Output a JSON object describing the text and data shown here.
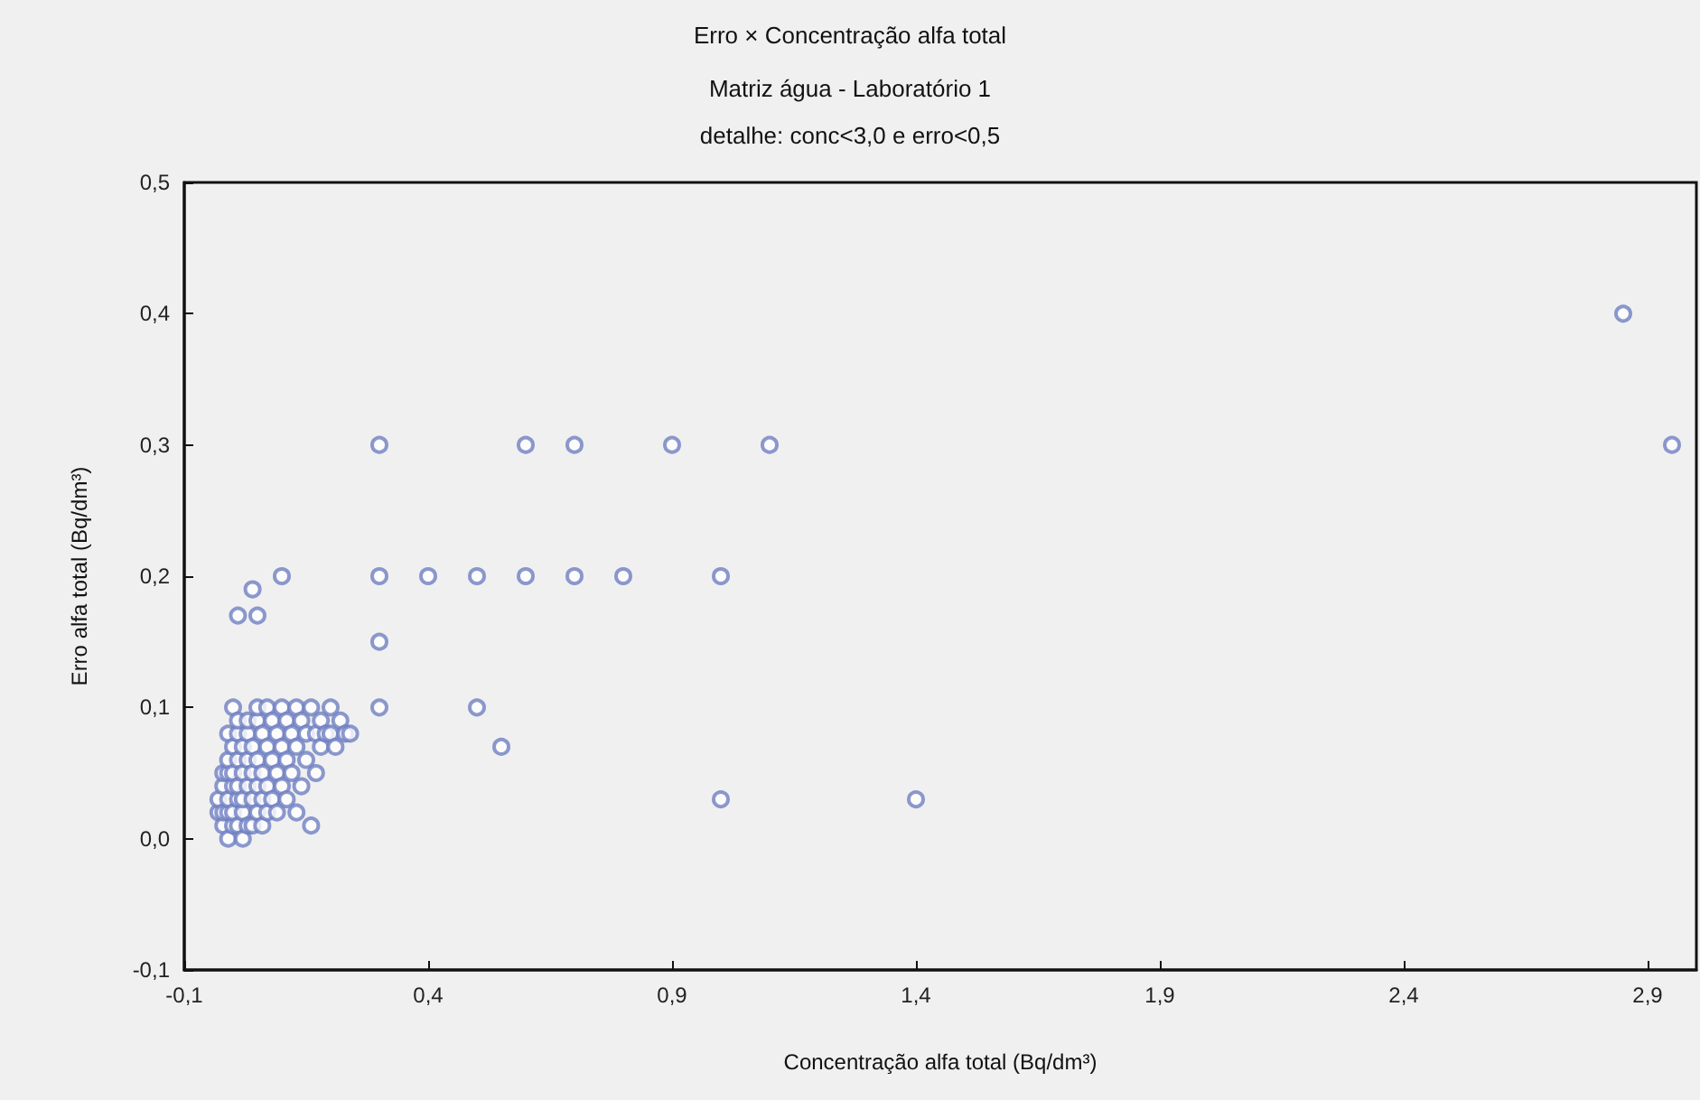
{
  "chart_data": {
    "type": "scatter",
    "title": "Erro × Concentração alfa total",
    "subtitle": "Matriz água - Laboratório 1\ndetalhe: conc<3,0 e erro<0,5",
    "xlabel": "Concentração alfa total (Bq/dm³)",
    "ylabel": "Erro alfa total (Bq/dm³)",
    "series": [
      {
        "color": "#6f80c2",
        "x": [
          -0.03,
          -0.03,
          -0.02,
          -0.02,
          -0.02,
          -0.02,
          -0.01,
          -0.01,
          -0.01,
          -0.01,
          -0.01,
          -0.01,
          0.0,
          0.0,
          0.0,
          0.0,
          0.0,
          0.0,
          0.01,
          0.01,
          0.01,
          0.01,
          0.01,
          0.01,
          0.02,
          0.02,
          0.02,
          0.02,
          0.02,
          0.03,
          0.03,
          0.03,
          0.03,
          0.03,
          0.04,
          0.04,
          0.04,
          0.04,
          0.05,
          0.05,
          0.05,
          0.05,
          0.05,
          0.06,
          0.06,
          0.06,
          0.06,
          0.07,
          0.07,
          0.07,
          0.07,
          0.08,
          0.08,
          0.08,
          0.09,
          0.09,
          0.09,
          0.1,
          0.1,
          0.1,
          0.11,
          0.11,
          0.11,
          0.12,
          0.12,
          0.13,
          0.13,
          0.13,
          0.14,
          0.14,
          0.15,
          0.15,
          0.16,
          0.16,
          0.17,
          0.17,
          0.18,
          0.18,
          0.19,
          0.2,
          0.2,
          0.21,
          0.22,
          0.23,
          0.24,
          0.01,
          0.05,
          0.04,
          0.1,
          0.3,
          0.6,
          0.7,
          0.9,
          1.1,
          0.3,
          0.4,
          0.5,
          0.6,
          0.7,
          0.8,
          1.0,
          0.3,
          0.3,
          0.5,
          0.55,
          1.0,
          1.4,
          2.85,
          2.95
        ],
        "values": [
          0.02,
          0.03,
          0.01,
          0.02,
          0.04,
          0.05,
          0.0,
          0.02,
          0.03,
          0.05,
          0.06,
          0.08,
          0.01,
          0.02,
          0.04,
          0.05,
          0.07,
          0.1,
          0.01,
          0.03,
          0.04,
          0.06,
          0.08,
          0.09,
          0.0,
          0.02,
          0.03,
          0.05,
          0.07,
          0.01,
          0.04,
          0.06,
          0.08,
          0.09,
          0.01,
          0.03,
          0.05,
          0.07,
          0.02,
          0.04,
          0.06,
          0.09,
          0.1,
          0.01,
          0.03,
          0.05,
          0.08,
          0.02,
          0.04,
          0.07,
          0.1,
          0.03,
          0.06,
          0.09,
          0.02,
          0.05,
          0.08,
          0.04,
          0.07,
          0.1,
          0.03,
          0.06,
          0.09,
          0.05,
          0.08,
          0.02,
          0.07,
          0.1,
          0.04,
          0.09,
          0.06,
          0.08,
          0.01,
          0.1,
          0.05,
          0.08,
          0.07,
          0.09,
          0.08,
          0.1,
          0.08,
          0.07,
          0.09,
          0.08,
          0.08,
          0.17,
          0.17,
          0.19,
          0.2,
          0.3,
          0.3,
          0.3,
          0.3,
          0.3,
          0.2,
          0.2,
          0.2,
          0.2,
          0.2,
          0.2,
          0.2,
          0.15,
          0.1,
          0.1,
          0.07,
          0.03,
          0.03,
          0.4,
          0.3
        ]
      }
    ],
    "xlim": [
      -0.1,
      3.0
    ],
    "ylim": [
      -0.1,
      0.5
    ],
    "xticks": [
      {
        "value": -0.1,
        "label": "-0,1"
      },
      {
        "value": 0.4,
        "label": "0,4"
      },
      {
        "value": 0.9,
        "label": "0,9"
      },
      {
        "value": 1.4,
        "label": "1,4"
      },
      {
        "value": 1.9,
        "label": "1,9"
      },
      {
        "value": 2.4,
        "label": "2,4"
      },
      {
        "value": 2.9,
        "label": "2,9"
      }
    ],
    "yticks": [
      {
        "value": -0.1,
        "label": "-0,1"
      },
      {
        "value": 0.0,
        "label": "0,0"
      },
      {
        "value": 0.1,
        "label": "0,1"
      },
      {
        "value": 0.2,
        "label": "0,2"
      },
      {
        "value": 0.3,
        "label": "0,3"
      },
      {
        "value": 0.4,
        "label": "0,4"
      },
      {
        "value": 0.5,
        "label": "0,5"
      }
    ],
    "grid": false,
    "marker": "circle"
  }
}
